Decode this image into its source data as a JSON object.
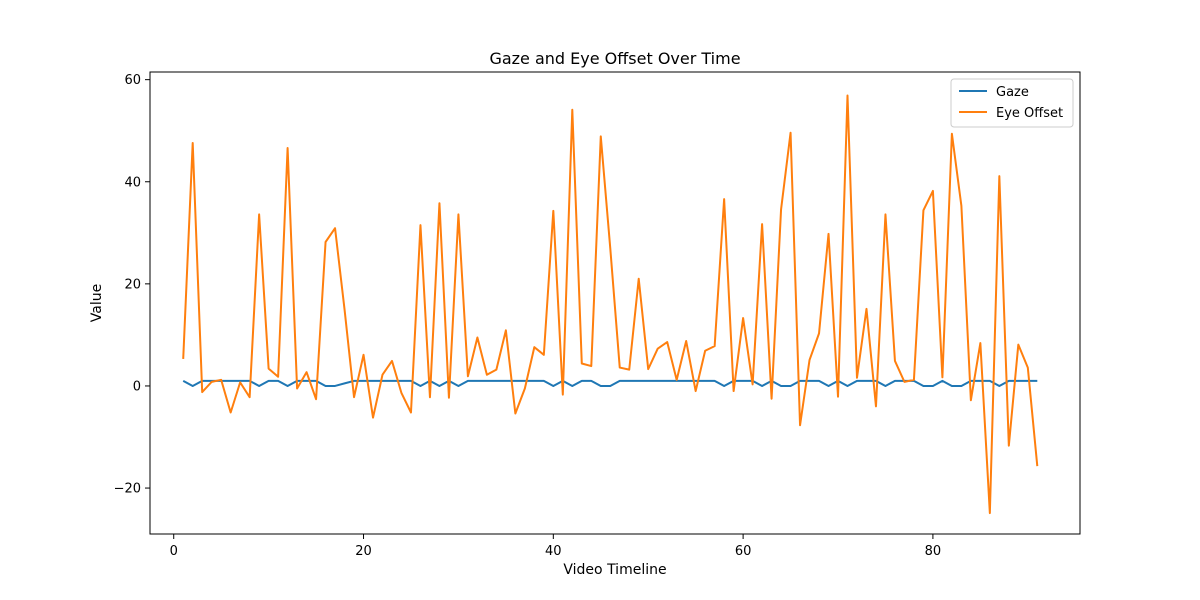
{
  "chart_data": {
    "type": "line",
    "title": "Gaze and Eye Offset Over Time",
    "xlabel": "Video Timeline",
    "ylabel": "Value",
    "xlim": [
      -2.5,
      95.5
    ],
    "ylim": [
      -29,
      61.5
    ],
    "xticks": [
      0,
      20,
      40,
      60,
      80
    ],
    "yticks": [
      -20,
      0,
      20,
      40,
      60
    ],
    "grid": false,
    "legend_position": "top-right",
    "x": [
      1,
      2,
      3,
      4,
      5,
      6,
      7,
      8,
      9,
      10,
      11,
      12,
      13,
      14,
      15,
      16,
      17,
      18,
      19,
      20,
      21,
      22,
      23,
      24,
      25,
      26,
      27,
      28,
      29,
      30,
      31,
      32,
      33,
      34,
      35,
      36,
      37,
      38,
      39,
      40,
      41,
      42,
      43,
      44,
      45,
      46,
      47,
      48,
      49,
      50,
      51,
      52,
      53,
      54,
      55,
      56,
      57,
      58,
      59,
      60,
      61,
      62,
      63,
      64,
      65,
      66,
      67,
      68,
      69,
      70,
      71,
      72,
      73,
      74,
      75,
      76,
      77,
      78,
      79,
      80,
      81,
      82,
      83,
      84,
      85,
      86,
      87,
      88,
      89,
      90,
      91
    ],
    "series": [
      {
        "name": "Gaze",
        "color": "#1f77b4",
        "values": [
          1,
          0,
          1,
          1,
          1,
          1,
          1,
          1,
          0,
          1,
          1,
          0,
          1,
          1,
          1,
          0,
          0,
          0.5,
          1,
          1,
          1,
          1,
          1,
          1,
          1,
          0,
          1,
          0,
          1,
          0,
          1,
          1,
          1,
          1,
          1,
          1,
          1,
          1,
          1,
          0,
          1,
          0,
          1,
          1,
          0,
          0,
          1,
          1,
          1,
          1,
          1,
          1,
          1,
          1,
          1,
          1,
          1,
          0,
          1,
          1,
          1,
          0,
          1,
          0,
          0,
          1,
          1,
          1,
          0,
          1,
          0,
          1,
          1,
          1,
          0,
          1,
          1,
          1,
          0,
          0,
          1,
          0,
          0,
          1,
          1,
          1,
          0,
          1,
          1,
          1,
          1
        ]
      },
      {
        "name": "Eye Offset",
        "color": "#ff7f0e",
        "values": [
          5.3,
          47.6,
          -1.2,
          0.8,
          1.2,
          -5.2,
          0.7,
          -2.2,
          33.6,
          3.4,
          1.8,
          46.6,
          -0.5,
          2.7,
          -2.6,
          28.2,
          30.9,
          15,
          -2.2,
          6.1,
          -6.2,
          2.2,
          4.9,
          -1.4,
          -5.2,
          31.5,
          -2.2,
          35.8,
          -2.3,
          33.6,
          1.9,
          9.5,
          2.2,
          3.2,
          10.9,
          -5.4,
          -0.5,
          7.6,
          6.1,
          34.3,
          -1.7,
          54.1,
          4.4,
          3.9,
          48.9,
          27,
          3.6,
          3.2,
          21,
          3.3,
          7.3,
          8.6,
          1.2,
          8.8,
          -1,
          6.9,
          7.8,
          36.6,
          -1,
          13.3,
          0.3,
          31.7,
          -2.5,
          34.6,
          49.6,
          -7.7,
          5.1,
          10.3,
          29.8,
          -2.1,
          56.9,
          1.6,
          15.1,
          -4,
          33.6,
          4.9,
          0.8,
          1.2,
          34.4,
          38.2,
          1.7,
          49.4,
          35.3,
          -2.8,
          8.4,
          -24.9,
          41.1,
          -11.7,
          8.1,
          3.6,
          -15.7
        ]
      }
    ]
  }
}
